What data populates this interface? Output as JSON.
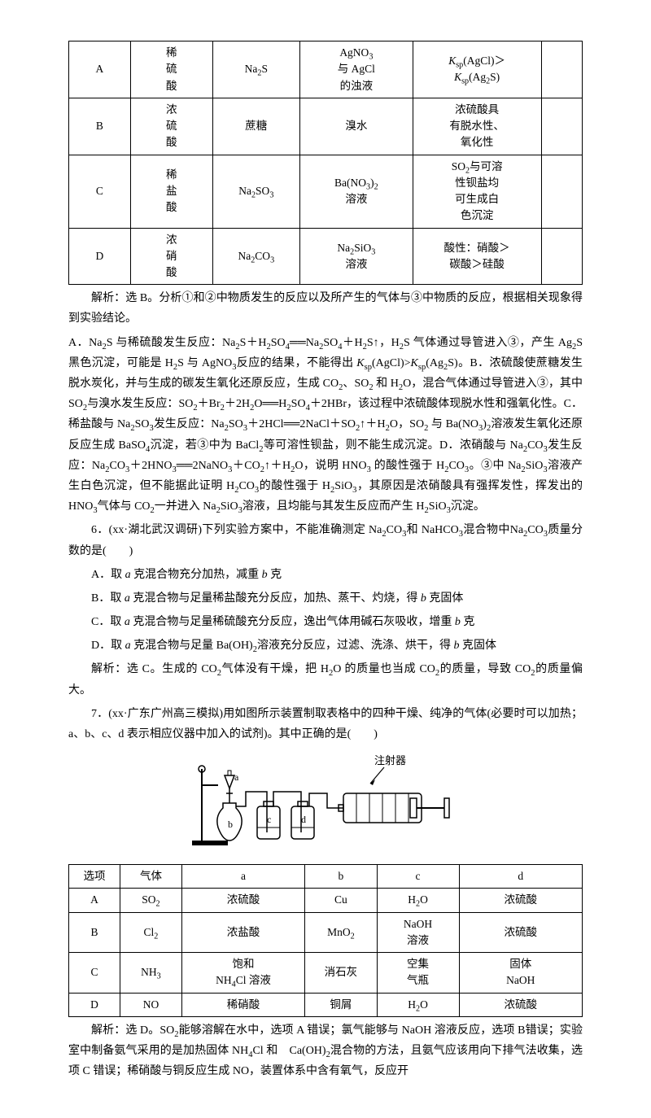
{
  "table1": {
    "rows": [
      {
        "id": "A",
        "c2": "稀\n硫\n酸",
        "c3": "Na₂S",
        "c4": "AgNO₃\n与 AgCl\n的浊液",
        "c5": "Kₛₚ(AgCl)＞\nKₛₚ(Ag₂S)",
        "c6": ""
      },
      {
        "id": "B",
        "c2": "浓\n硫\n酸",
        "c3": "蔗糖",
        "c4": "溴水",
        "c5": "浓硫酸具\n有脱水性、\n氧化性",
        "c6": ""
      },
      {
        "id": "C",
        "c2": "稀\n盐\n酸",
        "c3": "Na₂SO₃",
        "c4": "Ba(NO₃)₂\n溶液",
        "c5": "SO₂与可溶\n性钡盐均\n可生成白\n色沉淀",
        "c6": ""
      },
      {
        "id": "D",
        "c2": "浓\n硝\n酸",
        "c3": "Na₂CO₃",
        "c4": "Na₂SiO₃\n溶液",
        "c5": "酸性：硝酸＞\n碳酸＞硅酸",
        "c6": ""
      }
    ]
  },
  "analysis1a": "解析：选 B。分析①和②中物质发生的反应以及所产生的气体与③中物质的反应，根据相关现象得到实验结论。",
  "analysis1b": "A．Na₂S 与稀硫酸发生反应：Na₂S＋H₂SO₄══Na₂SO₄＋H₂S↑，H₂S 气体通过导管进入③，产生 Ag₂S 黑色沉淀，可能是 H₂S 与 AgNO₃反应的结果，不能得出 Kₛₚ(AgCl)>Kₛₚ(Ag₂S)。B．浓硫酸使蔗糖发生脱水炭化，并与生成的碳发生氧化还原反应，生成 CO₂、SO₂ 和 H₂O，混合气体通过导管进入③，其中 SO₂与溴水发生反应：SO₂＋Br₂＋2H₂O══H₂SO₄＋2HBr，该过程中浓硫酸体现脱水性和强氧化性。C．稀盐酸与 Na₂SO₃发生反应：Na₂SO₃＋2HCl══2NaCl＋SO₂↑＋H₂O，SO₂ 与 Ba(NO₃)₂溶液发生氧化还原反应生成 BaSO₄沉淀，若③中为 BaCl₂等可溶性钡盐，则不能生成沉淀。D．浓硝酸与 Na₂CO₃发生反应：Na₂CO₃＋2HNO₃══2NaNO₃＋CO₂↑＋H₂O，说明 HNO₃ 的酸性强于 H₂CO₃。③中 Na₂SiO₃溶液产生白色沉淀，但不能据此证明 H₂CO₃的酸性强于 H₂SiO₃，其原因是浓硝酸具有强挥发性，挥发出的 HNO₃气体与 CO₂一并进入 Na₂SiO₃溶液，且均能与其发生反应而产生 H₂SiO₃沉淀。",
  "q6": {
    "stem": "6．(xx·湖北武汉调研)下列实验方案中，不能准确测定 Na₂CO₃和 NaHCO₃混合物中Na₂CO₃质量分数的是(　　)",
    "opts": [
      "A．取 a 克混合物充分加热，减重 b 克",
      "B．取 a 克混合物与足量稀盐酸充分反应，加热、蒸干、灼烧，得 b 克固体",
      "C．取 a 克混合物与足量稀硫酸充分反应，逸出气体用碱石灰吸收，增重 b 克",
      "D．取 a 克混合物与足量 Ba(OH)₂溶液充分反应，过滤、洗涤、烘干，得 b 克固体"
    ],
    "analysis": "解析：选 C。生成的 CO₂气体没有干燥，把 H₂O 的质量也当成 CO₂的质量，导致 CO₂的质量偏大。"
  },
  "q7": {
    "stem": "7．(xx·广东广州高三模拟)用如图所示装置制取表格中的四种干燥、纯净的气体(必要时可以加热；a、b、c、d 表示相应仪器中加入的试剂)。其中正确的是(　　)",
    "label_injector": "注射器"
  },
  "table2": {
    "header": [
      "选项",
      "气体",
      "a",
      "b",
      "c",
      "d"
    ],
    "rows": [
      [
        "A",
        "SO₂",
        "浓硫酸",
        "Cu",
        "H₂O",
        "浓硫酸"
      ],
      [
        "B",
        "Cl₂",
        "浓盐酸",
        "MnO₂",
        "NaOH\n溶液",
        "浓硫酸"
      ],
      [
        "C",
        "NH₃",
        "饱和\nNH₄Cl 溶液",
        "消石灰",
        "空集\n气瓶",
        "固体\nNaOH"
      ],
      [
        "D",
        "NO",
        "稀硝酸",
        "铜屑",
        "H₂O",
        "浓硫酸"
      ]
    ]
  },
  "analysis7": "解析：选 D。SO₂能够溶解在水中，选项 A 错误；氯气能够与 NaOH 溶液反应，选项 B错误；实验室中制备氨气采用的是加热固体 NH₄Cl 和　Ca(OH)₂混合物的方法，且氨气应该用向下排气法收集，选项 C 错误；稀硝酸与铜反应生成 NO，装置体系中含有氧气，反应开"
}
